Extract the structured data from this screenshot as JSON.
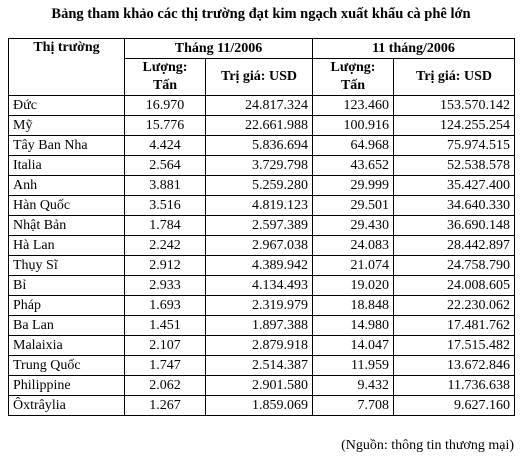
{
  "title": "Bảng tham khảo các thị trường đạt kim ngạch xuất khẩu cà phê lớn",
  "table": {
    "market_header": "Thị trường",
    "periods": [
      "Tháng 11/2006",
      "11 tháng/2006"
    ],
    "sub_headers": [
      "Lượng: Tấn",
      "Trị giá: USD",
      "Lượng: Tấn",
      "Trị giá: USD"
    ],
    "rows": [
      [
        "Đức",
        "16.970",
        "24.817.324",
        "123.460",
        "153.570.142"
      ],
      [
        "Mỹ",
        "15.776",
        "22.661.988",
        "100.916",
        "124.255.254"
      ],
      [
        "Tây Ban Nha",
        "4.424",
        "5.836.694",
        "64.968",
        "75.974.515"
      ],
      [
        "Italia",
        "2.564",
        "3.729.798",
        "43.652",
        "52.538.578"
      ],
      [
        "Anh",
        "3.881",
        "5.259.280",
        "29.999",
        "35.427.400"
      ],
      [
        "Hàn Quốc",
        "3.516",
        "4.819.123",
        "29.501",
        "34.640.330"
      ],
      [
        "Nhật Bản",
        "1.784",
        "2.597.389",
        "29.430",
        "36.690.148"
      ],
      [
        "Hà Lan",
        "2.242",
        "2.967.038",
        "24.083",
        "28.442.897"
      ],
      [
        "Thụy Sĩ",
        "2.912",
        "4.389.942",
        "21.074",
        "24.758.790"
      ],
      [
        "Bỉ",
        "2.933",
        "4.134.493",
        "19.020",
        "24.008.605"
      ],
      [
        "Pháp",
        "1.693",
        "2.319.979",
        "18.848",
        "22.230.062"
      ],
      [
        "Ba Lan",
        "1.451",
        "1.897.388",
        "14.980",
        "17.481.762"
      ],
      [
        "Malaixia",
        "2.107",
        "2.879.918",
        "14.047",
        "17.515.482"
      ],
      [
        "Trung Quốc",
        "1.747",
        "2.514.387",
        "11.959",
        "13.672.846"
      ],
      [
        "Philippine",
        "2.062",
        "2.901.580",
        "9.432",
        "11.736.638"
      ],
      [
        "Ôxtrâylia",
        "1.267",
        "1.859.069",
        "7.708",
        "9.627.160"
      ]
    ]
  },
  "source": "(Nguồn: thông tin thương mại)"
}
